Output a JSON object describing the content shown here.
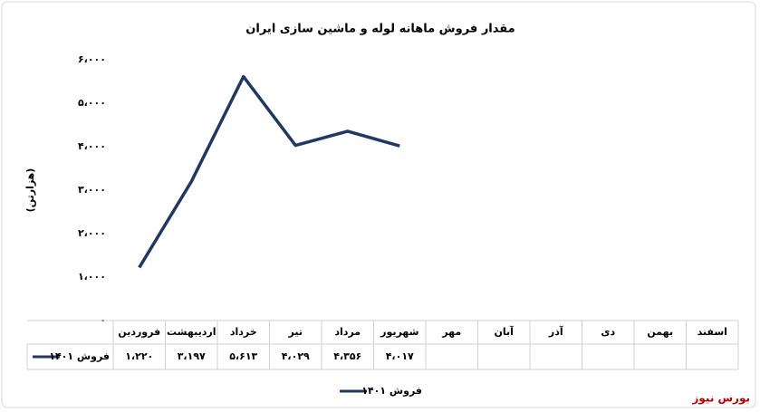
{
  "chart_data": {
    "type": "line",
    "title": "مقدار فروش ماهانه لوله و ماشین سازی ایران",
    "y_label": "(هزارتن)",
    "source": "بورس نیوز",
    "categories": [
      "فروردین",
      "اردیبهشت",
      "خرداد",
      "تیر",
      "مرداد",
      "شهریور",
      "مهر",
      "آبان",
      "آذر",
      "دی",
      "بهمن",
      "اسفند"
    ],
    "series": [
      {
        "name": "فروش ۱۴۰۱",
        "color": "#1f3864",
        "values": [
          1220,
          3197,
          5613,
          4029,
          4356,
          4017,
          null,
          null,
          null,
          null,
          null,
          null
        ],
        "value_labels": [
          "۱،۲۲۰",
          "۳،۱۹۷",
          "۵،۶۱۳",
          "۴،۰۲۹",
          "۴،۳۵۶",
          "۴،۰۱۷",
          null,
          null,
          null,
          null,
          null,
          null
        ]
      }
    ],
    "ylim": [
      0,
      6000
    ],
    "yticks": [
      {
        "value": 0,
        "label": "۰"
      },
      {
        "value": 1000,
        "label": "۱،۰۰۰"
      },
      {
        "value": 2000,
        "label": "۲،۰۰۰"
      },
      {
        "value": 3000,
        "label": "۳،۰۰۰"
      },
      {
        "value": 4000,
        "label": "۴،۰۰۰"
      },
      {
        "value": 5000,
        "label": "۵،۰۰۰"
      },
      {
        "value": 6000,
        "label": "۶،۰۰۰"
      }
    ],
    "grid": false,
    "legend": "bottom"
  }
}
